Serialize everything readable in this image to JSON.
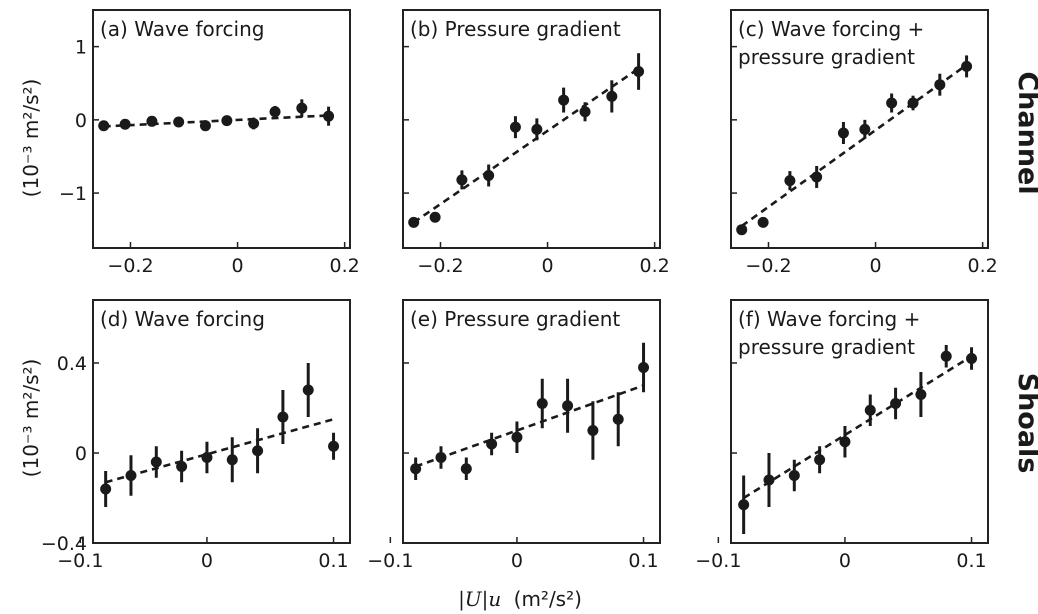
{
  "figure": {
    "xlabel_prefix": "|U|u",
    "xlabel_unit": "(m²/s²)",
    "ylabel": "(10⁻³ m²/s²)",
    "row_labels": [
      "Channel",
      "Shoals"
    ],
    "colors": {
      "marker": "#1a1a1a",
      "frame": "#222222"
    }
  },
  "chart_data": [
    {
      "type": "scatter",
      "title": "(a) Wave forcing",
      "xlim": [
        -0.27,
        0.21
      ],
      "ylim": [
        -1.75,
        1.5
      ],
      "xticks": [
        -0.2,
        0,
        0.2
      ],
      "xtick_labels": [
        "−0.2",
        "0",
        "0.2"
      ],
      "yticks": [
        -1,
        0,
        1
      ],
      "ytick_labels": [
        "−1",
        "0",
        "1"
      ],
      "x": [
        -0.25,
        -0.21,
        -0.16,
        -0.11,
        -0.06,
        -0.02,
        0.03,
        0.07,
        0.12,
        0.17
      ],
      "y": [
        -0.08,
        -0.06,
        -0.02,
        -0.03,
        -0.08,
        -0.01,
        -0.05,
        0.11,
        0.16,
        0.05
      ],
      "err": [
        0.02,
        0.02,
        0.02,
        0.02,
        0.04,
        0.03,
        0.08,
        0.08,
        0.12,
        0.13
      ],
      "fit": [
        [
          -0.25,
          -0.09
        ],
        [
          0.17,
          0.06
        ]
      ]
    },
    {
      "type": "scatter",
      "title": "(b) Pressure gradient",
      "xlim": [
        -0.27,
        0.21
      ],
      "ylim": [
        -1.75,
        1.5
      ],
      "xticks": [
        -0.2,
        0,
        0.2
      ],
      "xtick_labels": [
        "−0.2",
        "0",
        "0.2"
      ],
      "yticks": [
        -1,
        0,
        1
      ],
      "x": [
        -0.25,
        -0.21,
        -0.16,
        -0.11,
        -0.06,
        -0.02,
        0.03,
        0.07,
        0.12,
        0.17
      ],
      "y": [
        -1.4,
        -1.33,
        -0.82,
        -0.76,
        -0.1,
        -0.13,
        0.27,
        0.11,
        0.32,
        0.66
      ],
      "err": [
        0.03,
        0.03,
        0.13,
        0.15,
        0.15,
        0.15,
        0.17,
        0.13,
        0.22,
        0.25
      ],
      "fit": [
        [
          -0.25,
          -1.4
        ],
        [
          0.17,
          0.7
        ]
      ]
    },
    {
      "type": "scatter",
      "title_lines": [
        "(c) Wave forcing +",
        "pressure gradient"
      ],
      "xlim": [
        -0.27,
        0.21
      ],
      "ylim": [
        -1.75,
        1.5
      ],
      "xticks": [
        -0.2,
        0,
        0.2
      ],
      "xtick_labels": [
        "−0.2",
        "0",
        "0.2"
      ],
      "yticks": [
        -1,
        0,
        1
      ],
      "x": [
        -0.25,
        -0.21,
        -0.16,
        -0.11,
        -0.06,
        -0.02,
        0.03,
        0.07,
        0.12,
        0.17
      ],
      "y": [
        -1.5,
        -1.4,
        -0.83,
        -0.78,
        -0.18,
        -0.13,
        0.23,
        0.23,
        0.48,
        0.73
      ],
      "err": [
        0.03,
        0.03,
        0.13,
        0.15,
        0.15,
        0.13,
        0.13,
        0.1,
        0.15,
        0.15
      ],
      "fit": [
        [
          -0.25,
          -1.45
        ],
        [
          0.17,
          0.75
        ]
      ]
    },
    {
      "type": "scatter",
      "title": "(d) Wave forcing",
      "xlim": [
        -0.09,
        0.113
      ],
      "ylim": [
        -0.4,
        0.68
      ],
      "xticks": [
        -0.1,
        0,
        0.1
      ],
      "xtick_labels": [
        "−0.1",
        "0",
        "0.1"
      ],
      "yticks": [
        -0.4,
        0,
        0.4
      ],
      "ytick_labels": [
        "−0.4",
        "0",
        "0.4"
      ],
      "x": [
        -0.08,
        -0.06,
        -0.04,
        -0.02,
        0,
        0.02,
        0.04,
        0.06,
        0.08,
        0.1
      ],
      "y": [
        -0.16,
        -0.1,
        -0.04,
        -0.06,
        -0.02,
        -0.03,
        0.01,
        0.16,
        0.28,
        0.03
      ],
      "err": [
        0.08,
        0.09,
        0.07,
        0.07,
        0.07,
        0.1,
        0.1,
        0.12,
        0.12,
        0.06
      ],
      "fit": [
        [
          -0.08,
          -0.13
        ],
        [
          0.1,
          0.15
        ]
      ]
    },
    {
      "type": "scatter",
      "title": "(e) Pressure gradient",
      "xlim": [
        -0.09,
        0.113
      ],
      "ylim": [
        -0.4,
        0.68
      ],
      "xticks": [
        -0.1,
        0,
        0.1
      ],
      "xtick_labels": [
        "−0.1",
        "0",
        "0.1"
      ],
      "yticks": [
        -0.4,
        0,
        0.4
      ],
      "x": [
        -0.08,
        -0.06,
        -0.04,
        -0.02,
        0,
        0.02,
        0.04,
        0.06,
        0.08,
        0.1
      ],
      "y": [
        -0.07,
        -0.02,
        -0.07,
        0.04,
        0.07,
        0.22,
        0.21,
        0.1,
        0.15,
        0.38
      ],
      "err": [
        0.05,
        0.05,
        0.05,
        0.05,
        0.07,
        0.11,
        0.12,
        0.13,
        0.12,
        0.11
      ],
      "fit": [
        [
          -0.08,
          -0.06
        ],
        [
          0.1,
          0.3
        ]
      ]
    },
    {
      "type": "scatter",
      "title_lines": [
        "(f) Wave forcing +",
        "pressure gradient"
      ],
      "xlim": [
        -0.09,
        0.113
      ],
      "ylim": [
        -0.4,
        0.68
      ],
      "xticks": [
        -0.1,
        0,
        0.1
      ],
      "xtick_labels": [
        "−0.1",
        "0",
        "0.1"
      ],
      "yticks": [
        -0.4,
        0,
        0.4
      ],
      "x": [
        -0.08,
        -0.06,
        -0.04,
        -0.02,
        0,
        0.02,
        0.04,
        0.06,
        0.08,
        0.1
      ],
      "y": [
        -0.23,
        -0.12,
        -0.1,
        -0.03,
        0.05,
        0.19,
        0.22,
        0.26,
        0.43,
        0.42
      ],
      "err": [
        0.13,
        0.12,
        0.07,
        0.06,
        0.07,
        0.07,
        0.07,
        0.1,
        0.05,
        0.05
      ],
      "fit": [
        [
          -0.08,
          -0.2
        ],
        [
          0.1,
          0.43
        ]
      ]
    }
  ]
}
